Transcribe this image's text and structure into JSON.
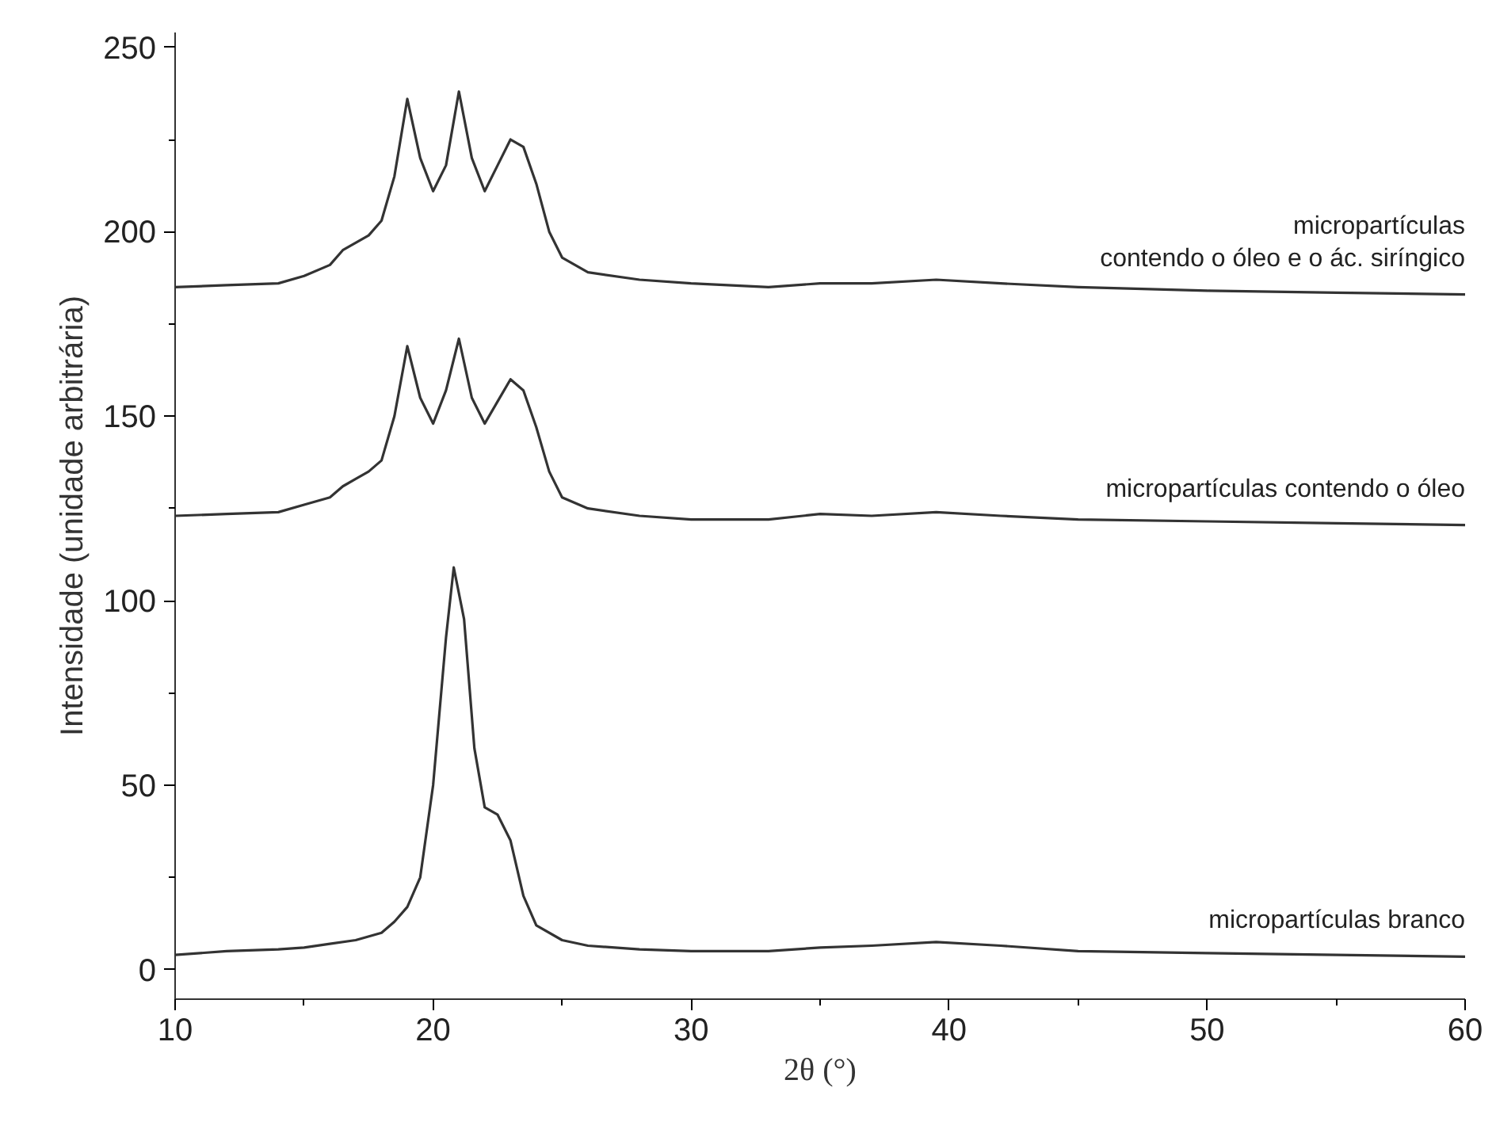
{
  "chart_data": {
    "type": "line",
    "xlabel": "2θ (°)",
    "ylabel": "Intensidade (unidade arbitrária)",
    "xlim": [
      10,
      60
    ],
    "ylim": [
      -8,
      254
    ],
    "xticks": [
      10,
      20,
      30,
      40,
      50,
      60
    ],
    "yticks": [
      0,
      50,
      100,
      150,
      200,
      250
    ],
    "grid": false,
    "legend": false,
    "marker": "none",
    "line_style": "solid",
    "series": [
      {
        "name": "micropartículas\ncontendo o óleo e o ác. siríngico",
        "color": "#333333",
        "x": [
          10,
          12,
          14,
          15,
          16,
          16.5,
          17,
          17.5,
          18,
          18.5,
          19,
          19.5,
          20,
          20.5,
          21,
          21.5,
          22,
          22.5,
          23,
          23.5,
          24,
          24.5,
          25,
          26,
          28,
          30,
          33,
          35,
          37,
          39.5,
          42,
          45,
          50,
          55,
          60
        ],
        "values": [
          185,
          185.5,
          186,
          188,
          191,
          195,
          197,
          199,
          203,
          215,
          236,
          220,
          211,
          218,
          238,
          220,
          211,
          218,
          225,
          223,
          213,
          200,
          193,
          189,
          187,
          186,
          185,
          186,
          186,
          187,
          186,
          185,
          184,
          183.5,
          183
        ]
      },
      {
        "name": "micropartículas contendo o óleo",
        "color": "#333333",
        "x": [
          10,
          12,
          14,
          15,
          16,
          16.5,
          17,
          17.5,
          18,
          18.5,
          19,
          19.5,
          20,
          20.5,
          21,
          21.5,
          22,
          22.5,
          23,
          23.5,
          24,
          24.5,
          25,
          26,
          28,
          30,
          33,
          35,
          37,
          39.5,
          42,
          45,
          50,
          55,
          60
        ],
        "values": [
          123,
          123.5,
          124,
          126,
          128,
          131,
          133,
          135,
          138,
          150,
          169,
          155,
          148,
          157,
          171,
          155,
          148,
          154,
          160,
          157,
          147,
          135,
          128,
          125,
          123,
          122,
          122,
          123.5,
          123,
          124,
          123,
          122,
          121.5,
          121,
          120.5
        ]
      },
      {
        "name": "micropartículas branco",
        "color": "#333333",
        "x": [
          10,
          12,
          14,
          15,
          16,
          17,
          18,
          18.5,
          19,
          19.5,
          20,
          20.5,
          20.8,
          21.2,
          21.6,
          22,
          22.5,
          23,
          23.5,
          24,
          25,
          26,
          28,
          30,
          33,
          35,
          37,
          39.5,
          42,
          45,
          50,
          55,
          60
        ],
        "values": [
          4,
          5,
          5.5,
          6,
          7,
          8,
          10,
          13,
          17,
          25,
          50,
          90,
          109,
          95,
          60,
          44,
          42,
          35,
          20,
          12,
          8,
          6.5,
          5.5,
          5,
          5,
          6,
          6.5,
          7.5,
          6.5,
          5,
          4.5,
          4,
          3.5
        ]
      }
    ]
  }
}
